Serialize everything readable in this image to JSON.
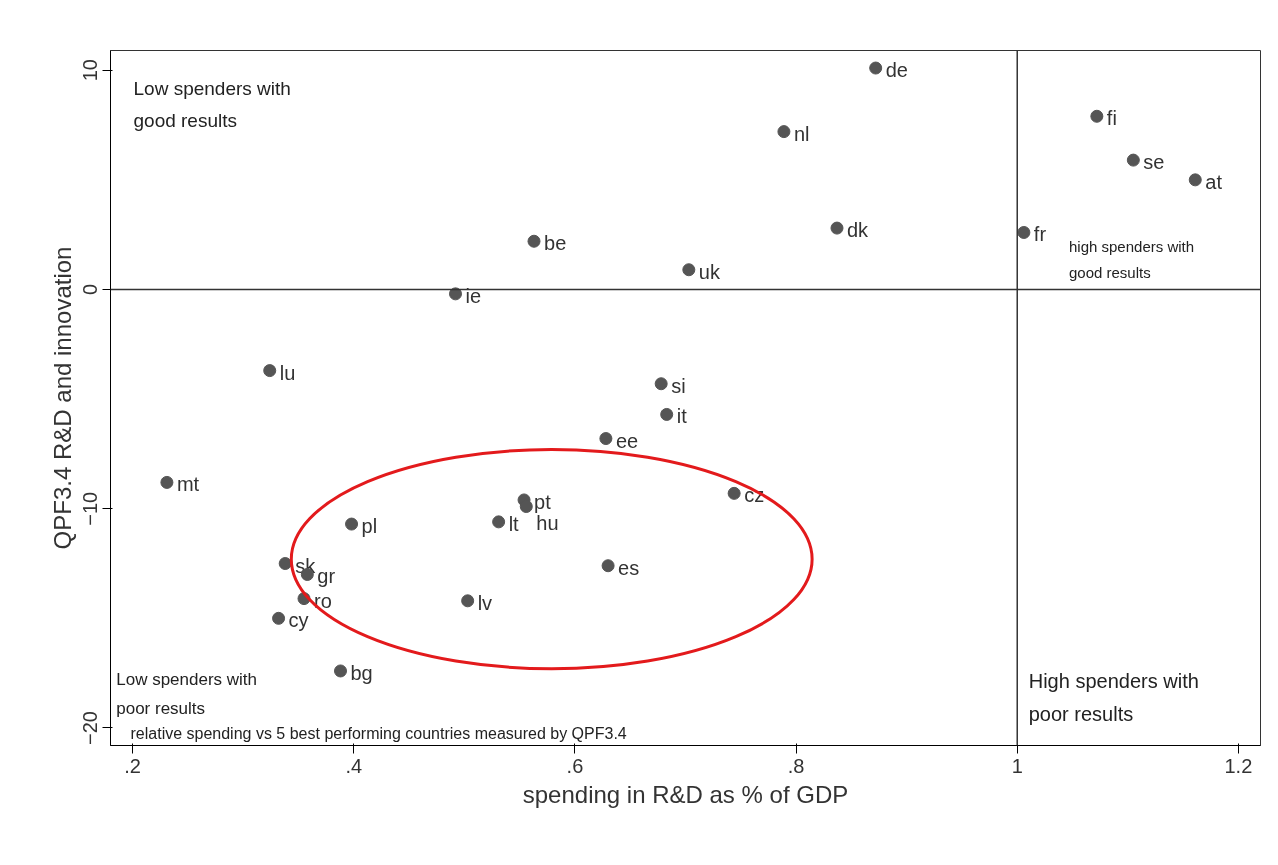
{
  "chart_data": {
    "type": "scatter",
    "xlabel": "spending in R&D as % of GDP",
    "ylabel": "QPF3.4 R&D and innovation",
    "annotations": [
      "Low spenders with good results",
      "Low spenders with poor results",
      "high spenders with good results",
      "High spenders with poor results",
      "relative spending vs 5 best performing countries measured by QPF3.4"
    ],
    "xlim": [
      0.18,
      1.22
    ],
    "ylim": [
      -20.8,
      10.9
    ],
    "xticks": [
      {
        "value": 0.2,
        "label": ".2"
      },
      {
        "value": 0.4,
        "label": ".4"
      },
      {
        "value": 0.6,
        "label": ".6"
      },
      {
        "value": 0.8,
        "label": ".8"
      },
      1,
      {
        "value": 1.2,
        "label": "1.2"
      }
    ],
    "yticks": [
      -20,
      -10,
      0,
      10
    ],
    "grid": false,
    "marker": "circle",
    "ref_lines": [
      {
        "axis": "x",
        "value": 1,
        "label": null,
        "color": "#333333"
      },
      {
        "axis": "y",
        "value": 0,
        "label": null,
        "color": "#333333"
      }
    ],
    "series": [
      {
        "name": "de",
        "color": "#555555",
        "x": [
          0.872
        ],
        "values": [
          10.1
        ]
      },
      {
        "name": "nl",
        "color": "#555555",
        "x": [
          0.789
        ],
        "values": [
          7.2
        ]
      },
      {
        "name": "fi",
        "color": "#555555",
        "x": [
          1.072
        ],
        "values": [
          7.9
        ]
      },
      {
        "name": "se",
        "color": "#555555",
        "x": [
          1.105
        ],
        "values": [
          5.9
        ]
      },
      {
        "name": "at",
        "color": "#555555",
        "x": [
          1.161
        ],
        "values": [
          5.0
        ]
      },
      {
        "name": "dk",
        "color": "#555555",
        "x": [
          0.837
        ],
        "values": [
          2.8
        ]
      },
      {
        "name": "fr",
        "color": "#555555",
        "x": [
          1.006
        ],
        "values": [
          2.6
        ]
      },
      {
        "name": "be",
        "color": "#555555",
        "x": [
          0.563
        ],
        "values": [
          2.2
        ]
      },
      {
        "name": "uk",
        "color": "#555555",
        "x": [
          0.703
        ],
        "values": [
          0.9
        ]
      },
      {
        "name": "ie",
        "color": "#555555",
        "x": [
          0.492
        ],
        "values": [
          -0.2
        ]
      },
      {
        "name": "lu",
        "color": "#555555",
        "x": [
          0.324
        ],
        "values": [
          -3.7
        ]
      },
      {
        "name": "si",
        "color": "#555555",
        "x": [
          0.678
        ],
        "values": [
          -4.3
        ]
      },
      {
        "name": "it",
        "color": "#555555",
        "x": [
          0.683
        ],
        "values": [
          -5.7
        ]
      },
      {
        "name": "ee",
        "color": "#555555",
        "x": [
          0.628
        ],
        "values": [
          -6.8
        ]
      },
      {
        "name": "mt",
        "color": "#555555",
        "x": [
          0.231
        ],
        "values": [
          -8.8
        ]
      },
      {
        "name": "cz",
        "color": "#555555",
        "x": [
          0.744
        ],
        "values": [
          -9.3
        ]
      },
      {
        "name": "pt",
        "color": "#555555",
        "x": [
          0.554
        ],
        "values": [
          -9.6
        ]
      },
      {
        "name": "hu",
        "color": "#555555",
        "x": [
          0.556
        ],
        "values": [
          -9.9
        ]
      },
      {
        "name": "pl",
        "color": "#555555",
        "x": [
          0.398
        ],
        "values": [
          -10.7
        ]
      },
      {
        "name": "lt",
        "color": "#555555",
        "x": [
          0.531
        ],
        "values": [
          -10.6
        ]
      },
      {
        "name": "sk",
        "color": "#555555",
        "x": [
          0.338
        ],
        "values": [
          -12.5
        ]
      },
      {
        "name": "gr",
        "color": "#555555",
        "x": [
          0.358
        ],
        "values": [
          -13.0
        ]
      },
      {
        "name": "es",
        "color": "#555555",
        "x": [
          0.63
        ],
        "values": [
          -12.6
        ]
      },
      {
        "name": "ro",
        "color": "#555555",
        "x": [
          0.355
        ],
        "values": [
          -14.1
        ]
      },
      {
        "name": "lv",
        "color": "#555555",
        "x": [
          0.503
        ],
        "values": [
          -14.2
        ]
      },
      {
        "name": "cy",
        "color": "#555555",
        "x": [
          0.332
        ],
        "values": [
          -15.0
        ]
      },
      {
        "name": "bg",
        "color": "#555555",
        "x": [
          0.388
        ],
        "values": [
          -17.4
        ]
      }
    ]
  }
}
